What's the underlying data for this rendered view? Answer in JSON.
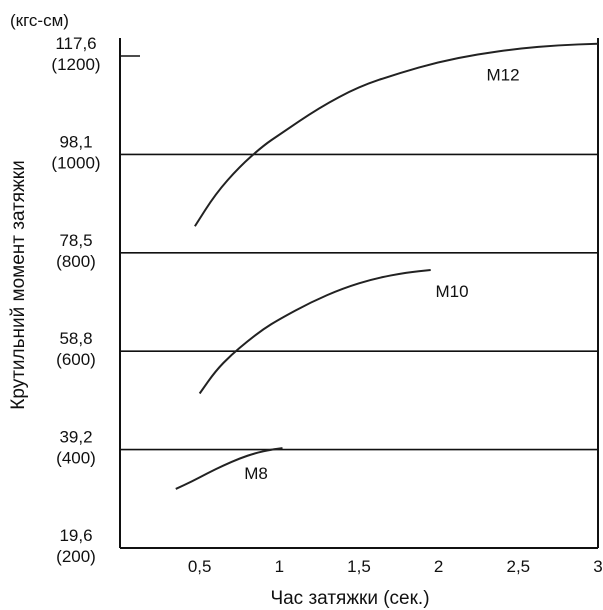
{
  "chart_data": {
    "type": "line",
    "unit_label": "(кгс-см)",
    "xlabel": "Час затяжки (сек.)",
    "ylabel": "Крутильний момент затяжки",
    "xlim": [
      0,
      3
    ],
    "ylim": [
      200,
      1200
    ],
    "x_ticks": [
      {
        "value": 0.5,
        "label": "0,5"
      },
      {
        "value": 1,
        "label": "1"
      },
      {
        "value": 1.5,
        "label": "1,5"
      },
      {
        "value": 2,
        "label": "2"
      },
      {
        "value": 2.5,
        "label": "2,5"
      },
      {
        "value": 3,
        "label": "3"
      }
    ],
    "y_ticks": [
      {
        "value": 200,
        "label": "19,6",
        "sublabel": "(200)"
      },
      {
        "value": 400,
        "label": "39,2",
        "sublabel": "(400)"
      },
      {
        "value": 600,
        "label": "58,8",
        "sublabel": "(600)"
      },
      {
        "value": 800,
        "label": "78,5",
        "sublabel": "(800)"
      },
      {
        "value": 1000,
        "label": "98,1",
        "sublabel": "(1000)"
      },
      {
        "value": 1200,
        "label": "117,6",
        "sublabel": "(1200)"
      }
    ],
    "gridlines_y": [
      400,
      600,
      800,
      1000
    ],
    "series": [
      {
        "name": "M12",
        "x": [
          0.47,
          0.6,
          0.75,
          0.9,
          1.0,
          1.25,
          1.5,
          1.75,
          2.0,
          2.25,
          2.5,
          2.75,
          3.0
        ],
        "y": [
          854,
          920,
          975,
          1018,
          1040,
          1095,
          1138,
          1165,
          1188,
          1204,
          1215,
          1222,
          1225
        ]
      },
      {
        "name": "M10",
        "x": [
          0.5,
          0.6,
          0.7,
          0.8,
          0.9,
          1.0,
          1.2,
          1.4,
          1.6,
          1.8,
          1.95
        ],
        "y": [
          514,
          560,
          593,
          620,
          645,
          665,
          700,
          728,
          748,
          760,
          765
        ]
      },
      {
        "name": "M8",
        "x": [
          0.35,
          0.45,
          0.55,
          0.65,
          0.75,
          0.85,
          0.95,
          1.02
        ],
        "y": [
          320,
          335,
          352,
          368,
          382,
          393,
          400,
          403
        ]
      }
    ]
  }
}
